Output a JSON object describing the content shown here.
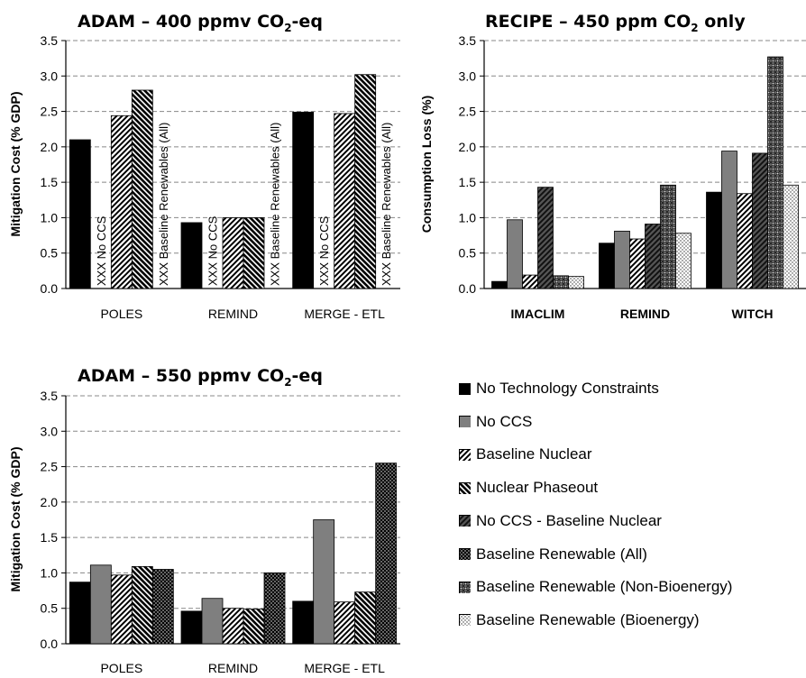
{
  "colors": {
    "series": [
      "#000000",
      "#7f7f7f",
      "pattern:diag-light",
      "pattern:diag-dark",
      "pattern:diag-gray",
      "pattern:dots-dark",
      "pattern:cross-gray",
      "pattern:dots-light"
    ]
  },
  "legend": {
    "items": [
      "No Technology Constraints",
      "No CCS",
      "Baseline Nuclear",
      "Nuclear Phaseout",
      "No CCS - Baseline Nuclear",
      "Baseline Renewable (All)",
      "Baseline Renewable (Non-Bioenergy)",
      "Baseline Renewable (Bioenergy)"
    ]
  },
  "chart_data": [
    {
      "id": "adam400",
      "type": "bar",
      "title_main": "ADAM – 400 ppmv CO",
      "title_sub": "2",
      "title_end": "-eq",
      "ylabel": "Mitigation Cost (% GDP)",
      "ylim": [
        0,
        3.5
      ],
      "yticks": [
        "0.0",
        "0.5",
        "1.0",
        "1.5",
        "2.0",
        "2.5",
        "3.0",
        "3.5"
      ],
      "grid": true,
      "categories": [
        "POLES",
        "REMIND",
        "MERGE - ETL"
      ],
      "series": [
        {
          "name": "No Technology Constraints",
          "values": [
            2.1,
            0.93,
            2.49
          ]
        },
        {
          "name": "No CCS",
          "values": [
            null,
            null,
            null
          ]
        },
        {
          "name": "Baseline Nuclear",
          "values": [
            2.44,
            1.0,
            2.47
          ]
        },
        {
          "name": "Nuclear Phaseout",
          "values": [
            2.8,
            1.0,
            3.02
          ]
        },
        {
          "name": "Baseline Renewable (All)",
          "values": [
            null,
            null,
            null
          ]
        }
      ],
      "annotations": [
        {
          "category": 0,
          "series": 1,
          "text": "XXX  No CCS"
        },
        {
          "category": 0,
          "series": 4,
          "text": "XXX  Baseline Renewables (All)"
        },
        {
          "category": 1,
          "series": 1,
          "text": "XXX  No CCS"
        },
        {
          "category": 1,
          "series": 4,
          "text": "XXX  Baseline Renewables (All)"
        },
        {
          "category": 2,
          "series": 1,
          "text": "XXX  No CCS"
        },
        {
          "category": 2,
          "series": 4,
          "text": "XXX  Baseline Renewables (All)"
        }
      ]
    },
    {
      "id": "recipe450",
      "type": "bar",
      "title_main": "RECIPE – 450 ppm CO",
      "title_sub": "2",
      "title_end": " only",
      "ylabel": "Consumption Loss (%)",
      "ylim": [
        0,
        3.5
      ],
      "yticks": [
        "0.0",
        "0.5",
        "1.0",
        "1.5",
        "2.0",
        "2.5",
        "3.0",
        "3.5"
      ],
      "grid": true,
      "categories": [
        "IMACLIM",
        "REMIND",
        "WITCH"
      ],
      "series": [
        {
          "name": "No Technology Constraints",
          "values": [
            0.1,
            0.64,
            1.36
          ]
        },
        {
          "name": "No CCS",
          "values": [
            0.97,
            0.81,
            1.94
          ]
        },
        {
          "name": "Baseline Nuclear",
          "values": [
            0.19,
            0.7,
            1.34
          ]
        },
        {
          "name": "No CCS - Baseline Nuclear",
          "values": [
            1.43,
            0.91,
            1.91
          ]
        },
        {
          "name": "Baseline Renewable (Non-Bioenergy)",
          "values": [
            0.18,
            1.46,
            3.27
          ]
        },
        {
          "name": "Baseline Renewable (Bioenergy)",
          "values": [
            0.17,
            0.78,
            1.46
          ]
        }
      ]
    },
    {
      "id": "adam550",
      "type": "bar",
      "title_main": "ADAM – 550 ppmv CO",
      "title_sub": "2",
      "title_end": "-eq",
      "ylabel": "Mitigation Cost (% GDP)",
      "ylim": [
        0,
        3.5
      ],
      "yticks": [
        "0.0",
        "0.5",
        "1.0",
        "1.5",
        "2.0",
        "2.5",
        "3.0",
        "3.5"
      ],
      "grid": true,
      "categories": [
        "POLES",
        "REMIND",
        "MERGE - ETL"
      ],
      "series": [
        {
          "name": "No Technology Constraints",
          "values": [
            0.87,
            0.46,
            0.6
          ]
        },
        {
          "name": "No CCS",
          "values": [
            1.11,
            0.64,
            1.75
          ]
        },
        {
          "name": "Baseline Nuclear",
          "values": [
            0.97,
            0.5,
            0.59
          ]
        },
        {
          "name": "Nuclear Phaseout",
          "values": [
            1.09,
            0.49,
            0.73
          ]
        },
        {
          "name": "Baseline Renewable (All)",
          "values": [
            1.05,
            1.0,
            2.55
          ]
        }
      ]
    }
  ]
}
